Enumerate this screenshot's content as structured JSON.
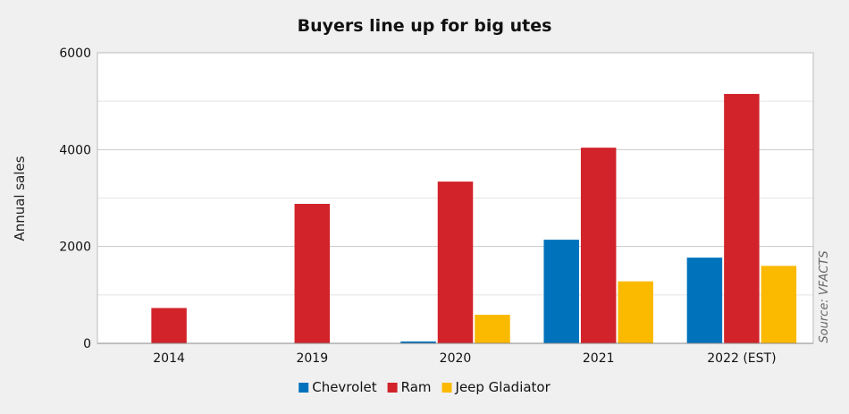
{
  "chart_data": {
    "type": "bar",
    "title": "Buyers line up for big utes",
    "xlabel": "",
    "ylabel": "Annual sales",
    "source": "Source: VFACTS",
    "categories": [
      "2014",
      "2019",
      "2020",
      "2021",
      "2022 (EST)"
    ],
    "ylim": [
      0,
      6000
    ],
    "yticks": [
      0,
      2000,
      4000,
      6000
    ],
    "grid": true,
    "legend_position": "bottom",
    "series": [
      {
        "name": "Chevrolet",
        "color": "#0072bc",
        "values": [
          null,
          null,
          40,
          2140,
          1770
        ]
      },
      {
        "name": "Ram",
        "color": "#d2232a",
        "values": [
          730,
          2880,
          3340,
          4040,
          5150
        ]
      },
      {
        "name": "Jeep Gladiator",
        "color": "#fbb900",
        "values": [
          null,
          null,
          590,
          1280,
          1600
        ]
      }
    ]
  }
}
